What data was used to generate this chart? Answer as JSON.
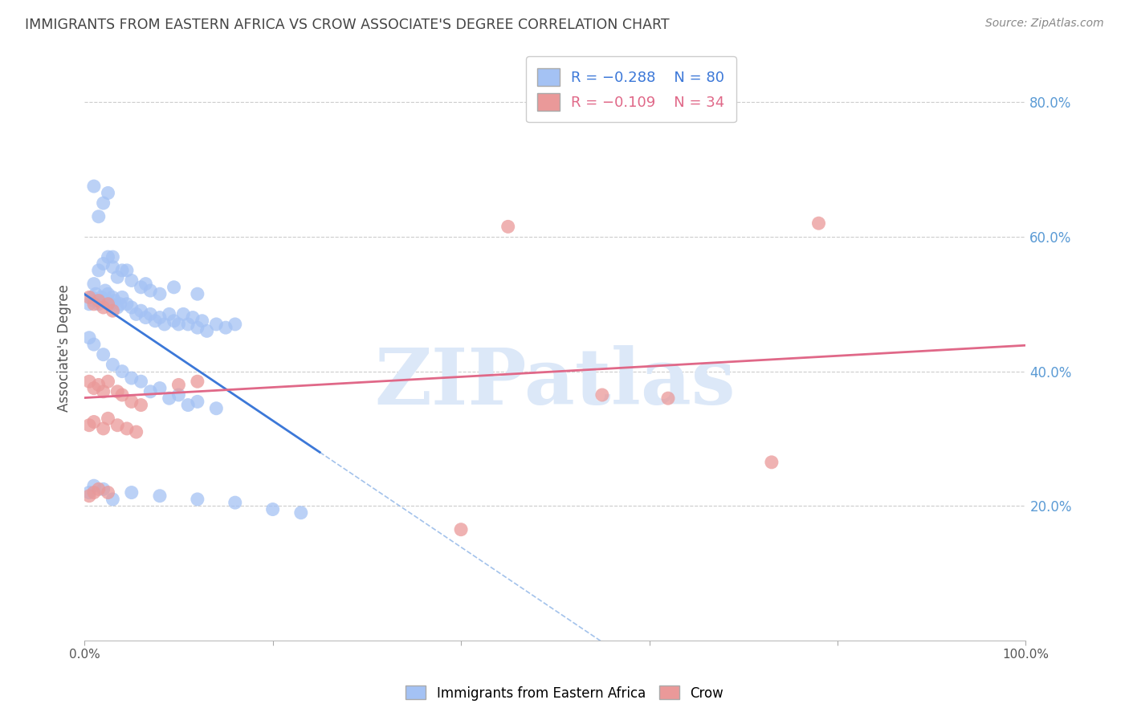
{
  "title": "IMMIGRANTS FROM EASTERN AFRICA VS CROW ASSOCIATE'S DEGREE CORRELATION CHART",
  "source": "Source: ZipAtlas.com",
  "ylabel": "Associate's Degree",
  "watermark": "ZIPatlas",
  "legend_blue_r": "R = −0.288",
  "legend_blue_n": "N = 80",
  "legend_pink_r": "R = −0.109",
  "legend_pink_n": "N = 34",
  "blue_color": "#a4c2f4",
  "pink_color": "#ea9999",
  "blue_line_color": "#3c78d8",
  "pink_line_color": "#e06888",
  "blue_scatter": [
    [
      0.5,
      50.0
    ],
    [
      0.8,
      51.0
    ],
    [
      1.0,
      50.5
    ],
    [
      1.2,
      51.5
    ],
    [
      1.5,
      50.0
    ],
    [
      1.8,
      51.0
    ],
    [
      2.0,
      50.5
    ],
    [
      2.2,
      52.0
    ],
    [
      2.5,
      51.5
    ],
    [
      2.8,
      50.0
    ],
    [
      3.0,
      51.0
    ],
    [
      3.2,
      50.5
    ],
    [
      3.5,
      49.5
    ],
    [
      3.8,
      50.0
    ],
    [
      4.0,
      51.0
    ],
    [
      4.5,
      50.0
    ],
    [
      5.0,
      49.5
    ],
    [
      5.5,
      48.5
    ],
    [
      6.0,
      49.0
    ],
    [
      6.5,
      48.0
    ],
    [
      7.0,
      48.5
    ],
    [
      7.5,
      47.5
    ],
    [
      8.0,
      48.0
    ],
    [
      8.5,
      47.0
    ],
    [
      9.0,
      48.5
    ],
    [
      9.5,
      47.5
    ],
    [
      10.0,
      47.0
    ],
    [
      10.5,
      48.5
    ],
    [
      11.0,
      47.0
    ],
    [
      11.5,
      48.0
    ],
    [
      12.0,
      46.5
    ],
    [
      12.5,
      47.5
    ],
    [
      13.0,
      46.0
    ],
    [
      14.0,
      47.0
    ],
    [
      15.0,
      46.5
    ],
    [
      16.0,
      47.0
    ],
    [
      1.0,
      53.0
    ],
    [
      1.5,
      55.0
    ],
    [
      2.0,
      56.0
    ],
    [
      2.5,
      57.0
    ],
    [
      3.0,
      55.5
    ],
    [
      3.5,
      54.0
    ],
    [
      4.0,
      55.0
    ],
    [
      5.0,
      53.5
    ],
    [
      6.0,
      52.5
    ],
    [
      7.0,
      52.0
    ],
    [
      8.0,
      51.5
    ],
    [
      1.5,
      63.0
    ],
    [
      2.0,
      65.0
    ],
    [
      2.5,
      66.5
    ],
    [
      1.0,
      67.5
    ],
    [
      3.0,
      57.0
    ],
    [
      4.5,
      55.0
    ],
    [
      6.5,
      53.0
    ],
    [
      9.5,
      52.5
    ],
    [
      12.0,
      51.5
    ],
    [
      0.5,
      45.0
    ],
    [
      1.0,
      44.0
    ],
    [
      2.0,
      42.5
    ],
    [
      3.0,
      41.0
    ],
    [
      4.0,
      40.0
    ],
    [
      5.0,
      39.0
    ],
    [
      6.0,
      38.5
    ],
    [
      7.0,
      37.0
    ],
    [
      8.0,
      37.5
    ],
    [
      9.0,
      36.0
    ],
    [
      10.0,
      36.5
    ],
    [
      11.0,
      35.0
    ],
    [
      12.0,
      35.5
    ],
    [
      14.0,
      34.5
    ],
    [
      0.5,
      22.0
    ],
    [
      1.0,
      23.0
    ],
    [
      2.0,
      22.5
    ],
    [
      3.0,
      21.0
    ],
    [
      5.0,
      22.0
    ],
    [
      8.0,
      21.5
    ],
    [
      12.0,
      21.0
    ],
    [
      16.0,
      20.5
    ],
    [
      20.0,
      19.5
    ],
    [
      23.0,
      19.0
    ]
  ],
  "pink_scatter": [
    [
      0.5,
      51.0
    ],
    [
      1.0,
      50.0
    ],
    [
      1.5,
      50.5
    ],
    [
      2.0,
      49.5
    ],
    [
      2.5,
      50.0
    ],
    [
      3.0,
      49.0
    ],
    [
      0.5,
      38.5
    ],
    [
      1.0,
      37.5
    ],
    [
      1.5,
      38.0
    ],
    [
      2.0,
      37.0
    ],
    [
      2.5,
      38.5
    ],
    [
      3.5,
      37.0
    ],
    [
      4.0,
      36.5
    ],
    [
      5.0,
      35.5
    ],
    [
      6.0,
      35.0
    ],
    [
      0.5,
      32.0
    ],
    [
      1.0,
      32.5
    ],
    [
      2.0,
      31.5
    ],
    [
      2.5,
      33.0
    ],
    [
      3.5,
      32.0
    ],
    [
      4.5,
      31.5
    ],
    [
      5.5,
      31.0
    ],
    [
      0.5,
      21.5
    ],
    [
      1.0,
      22.0
    ],
    [
      1.5,
      22.5
    ],
    [
      2.5,
      22.0
    ],
    [
      10.0,
      38.0
    ],
    [
      12.0,
      38.5
    ],
    [
      55.0,
      36.5
    ],
    [
      62.0,
      36.0
    ],
    [
      40.0,
      16.5
    ],
    [
      45.0,
      61.5
    ],
    [
      73.0,
      26.5
    ],
    [
      78.0,
      62.0
    ]
  ],
  "xlim": [
    0,
    100
  ],
  "ylim": [
    0,
    87
  ],
  "ytick_vals": [
    20,
    40,
    60,
    80
  ],
  "ytick_labels": [
    "20.0%",
    "40.0%",
    "60.0%",
    "80.0%"
  ],
  "xtick_vals": [
    0,
    20,
    40,
    60,
    80,
    100
  ],
  "background_color": "#ffffff",
  "grid_color": "#cccccc",
  "title_color": "#444444",
  "watermark_color": "#dce8f8",
  "blue_solid_end": 25,
  "pink_solid_full": true
}
